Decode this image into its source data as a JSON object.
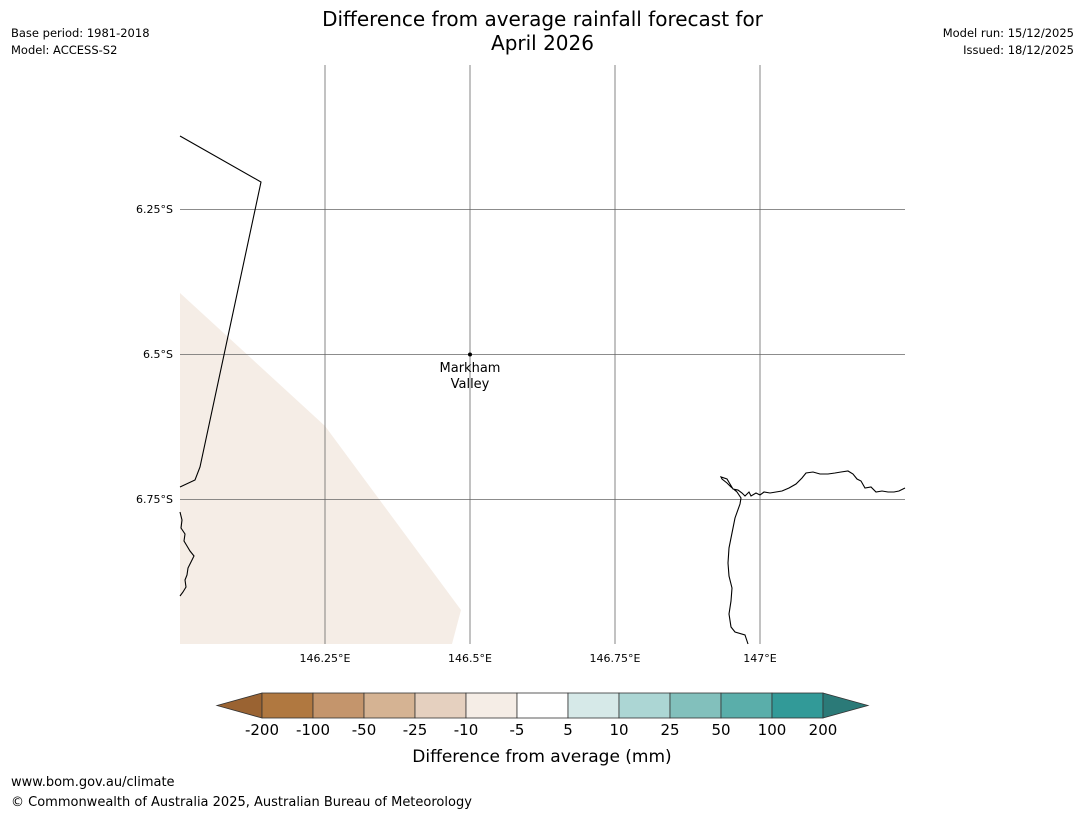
{
  "header": {
    "title_line1": "Difference from average rainfall forecast for",
    "title_line2": "April 2026",
    "base_period": "Base period: 1981-2018",
    "model": "Model: ACCESS-S2",
    "model_run": "Model run: 15/12/2025",
    "issued": "Issued: 18/12/2025"
  },
  "map": {
    "lat_labels": [
      "6.25°S",
      "6.5°S",
      "6.75°S"
    ],
    "lon_labels": [
      "146.25°E",
      "146.5°E",
      "146.75°E",
      "147°E"
    ],
    "place": {
      "name_line1": "Markham",
      "name_line2": "Valley"
    },
    "shaded_region_category": "-10 to -5",
    "shaded_region_color": "#f5ede6"
  },
  "legend": {
    "title": "Difference from average (mm)",
    "ticks": [
      "-200",
      "-100",
      "-50",
      "-25",
      "-10",
      "-5",
      "5",
      "10",
      "25",
      "50",
      "100",
      "200"
    ],
    "colors": {
      "below_min": "#9a6332",
      "bins": [
        "#b07840",
        "#c4956c",
        "#d5b393",
        "#e5d0bf",
        "#f5ede6",
        "#ffffff",
        "#d6e9e8",
        "#acd6d4",
        "#82c0bc",
        "#5aaeaa",
        "#329a98"
      ],
      "above_max": "#2b7a78"
    }
  },
  "footer": {
    "url": "www.bom.gov.au/climate",
    "copyright": "© Commonwealth of Australia 2025, Australian Bureau of Meteorology"
  }
}
